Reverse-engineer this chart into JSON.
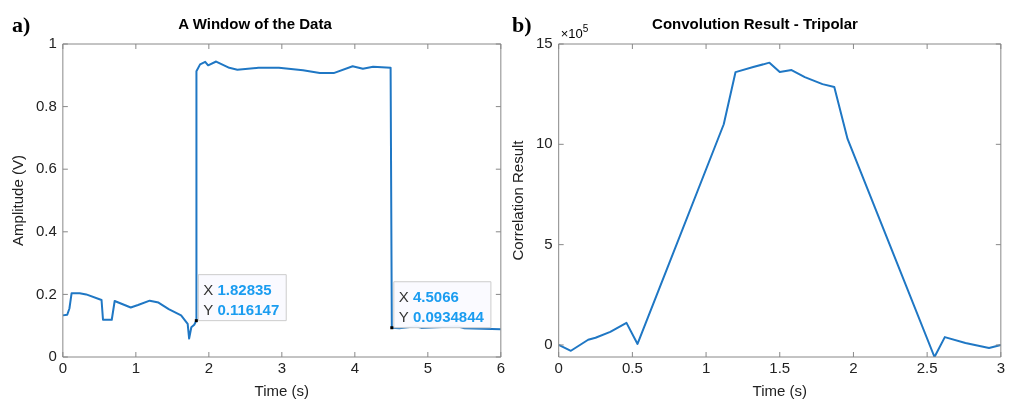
{
  "chart_data": [
    {
      "type": "line",
      "title": "A Window of the Data",
      "xlabel": "Time (s)",
      "ylabel": "Amplitude (V)",
      "xlim": [
        0,
        6
      ],
      "xticks": [
        0,
        1,
        2,
        3,
        4,
        5,
        6
      ],
      "ylim": [
        0,
        1
      ],
      "yticks": [
        0,
        0.2,
        0.4,
        0.6,
        0.8,
        1
      ],
      "marker": "none",
      "annotations": [
        "a)",
        {
          "text": "X 1.82835\nY 0.116147",
          "x": 1.82835,
          "y": 0.116147
        },
        {
          "text": "X 4.5066\nY 0.0934844",
          "x": 4.5066,
          "y": 0.0934844
        }
      ],
      "series": [
        {
          "color": "#1f77c4",
          "x": [
            0,
            0.06,
            0.09,
            0.12,
            0.23,
            0.32,
            0.53,
            0.55,
            0.67,
            0.71,
            0.93,
            1.03,
            1.19,
            1.31,
            1.45,
            1.62,
            1.71,
            1.73,
            1.76,
            1.8,
            1.82835,
            1.83,
            1.88,
            1.95,
            1.99,
            2.1,
            2.28,
            2.39,
            2.68,
            2.96,
            3.29,
            3.52,
            3.71,
            3.97,
            4.11,
            4.25,
            4.49,
            4.5066,
            4.61,
            4.84,
            4.91,
            5.41,
            5.5,
            6
          ],
          "values": [
            0.133,
            0.135,
            0.155,
            0.204,
            0.204,
            0.2,
            0.182,
            0.119,
            0.119,
            0.179,
            0.158,
            0.166,
            0.18,
            0.174,
            0.153,
            0.133,
            0.106,
            0.059,
            0.095,
            0.103,
            0.116147,
            0.913,
            0.935,
            0.943,
            0.932,
            0.944,
            0.924,
            0.918,
            0.924,
            0.924,
            0.916,
            0.907,
            0.907,
            0.929,
            0.921,
            0.927,
            0.924,
            0.0934844,
            0.092,
            0.098,
            0.093,
            0.098,
            0.092,
            0.089
          ]
        }
      ]
    },
    {
      "type": "line",
      "title": "Convolution Result - Tripolar",
      "xlabel": "Time (s)",
      "ylabel": "Correlation Result",
      "xlim": [
        0,
        3
      ],
      "xticks": [
        0,
        0.5,
        1,
        1.5,
        2,
        2.5,
        3
      ],
      "ylim": [
        -0.6,
        15
      ],
      "yticks": [
        0,
        5,
        10,
        15
      ],
      "marker": "none",
      "annotations": [
        "b)",
        "×10$^{5}$"
      ],
      "series": [
        {
          "color": "#1f77c4",
          "x": [
            0,
            0.083,
            0.2,
            0.25,
            0.35,
            0.46,
            0.535,
            1.12,
            1.2,
            1.32,
            1.43,
            1.5,
            1.58,
            1.67,
            1.79,
            1.87,
            1.96,
            2.55,
            2.62,
            2.76,
            2.92,
            3
          ],
          "values": [
            0,
            -0.29,
            0.26,
            0.36,
            0.65,
            1.1,
            0.05,
            11.0,
            13.6,
            13.85,
            14.07,
            13.6,
            13.7,
            13.35,
            13.0,
            12.86,
            10.27,
            -0.6,
            0.39,
            0.1,
            -0.15,
            0
          ]
        }
      ]
    }
  ]
}
